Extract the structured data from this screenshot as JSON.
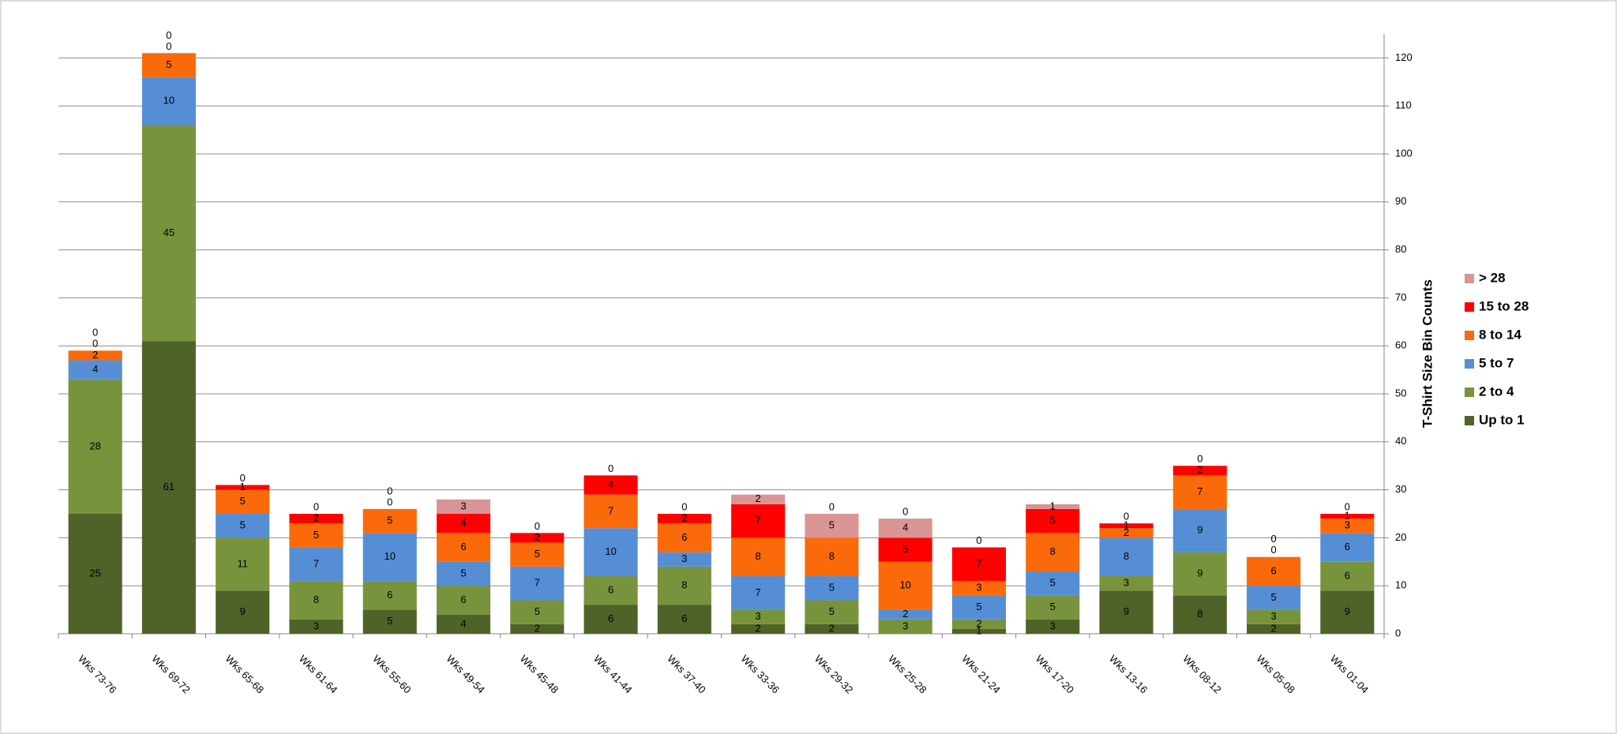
{
  "chart_data": {
    "type": "stacked_bar",
    "categories": [
      "Wks 73-76",
      "Wks 69-72",
      "Wks 65-68",
      "Wks 61-64",
      "Wks 55-60",
      "Wks 49-54",
      "Wks 45-48",
      "Wks 41-44",
      "Wks 37-40",
      "Wks 33-36",
      "Wks 29-32",
      "Wks 25-28",
      "Wks 21-24",
      "Wks 17-20",
      "Wks 13-16",
      "Wks 08-12",
      "Wks 05-08",
      "Wks 01-04"
    ],
    "series": [
      {
        "name": "Up to 1",
        "color": "#4f6228",
        "values": [
          25,
          61,
          9,
          3,
          5,
          4,
          2,
          6,
          6,
          2,
          2,
          0,
          1,
          3,
          9,
          8,
          2,
          9
        ]
      },
      {
        "name": "2 to 4",
        "color": "#77933c",
        "values": [
          28,
          45,
          11,
          8,
          6,
          6,
          5,
          6,
          8,
          3,
          5,
          3,
          2,
          5,
          3,
          9,
          3,
          6
        ]
      },
      {
        "name": "5 to 7",
        "color": "#558ed5",
        "values": [
          4,
          10,
          5,
          7,
          10,
          5,
          7,
          10,
          3,
          7,
          5,
          2,
          5,
          5,
          8,
          9,
          5,
          6
        ]
      },
      {
        "name": "8 to 14",
        "color": "#fa6a0a",
        "values": [
          2,
          5,
          5,
          5,
          5,
          6,
          5,
          7,
          6,
          8,
          8,
          10,
          3,
          8,
          2,
          7,
          6,
          3
        ]
      },
      {
        "name": "15 to 28",
        "color": "#ff0000",
        "values": [
          0,
          0,
          1,
          2,
          0,
          4,
          2,
          4,
          2,
          7,
          0,
          5,
          7,
          5,
          1,
          2,
          0,
          1
        ]
      },
      {
        "name": "> 28",
        "color": "#d99594",
        "values": [
          0,
          0,
          0,
          0,
          0,
          3,
          0,
          0,
          0,
          2,
          5,
          4,
          0,
          1,
          0,
          0,
          0,
          0
        ]
      }
    ],
    "y_axis_label": "T-Shirt Size Bin Counts",
    "ylim": [
      0,
      125
    ],
    "yticks": [
      0,
      10,
      20,
      30,
      40,
      50,
      60,
      70,
      80,
      90,
      100,
      110,
      120
    ],
    "grid": true,
    "legend": "right"
  }
}
